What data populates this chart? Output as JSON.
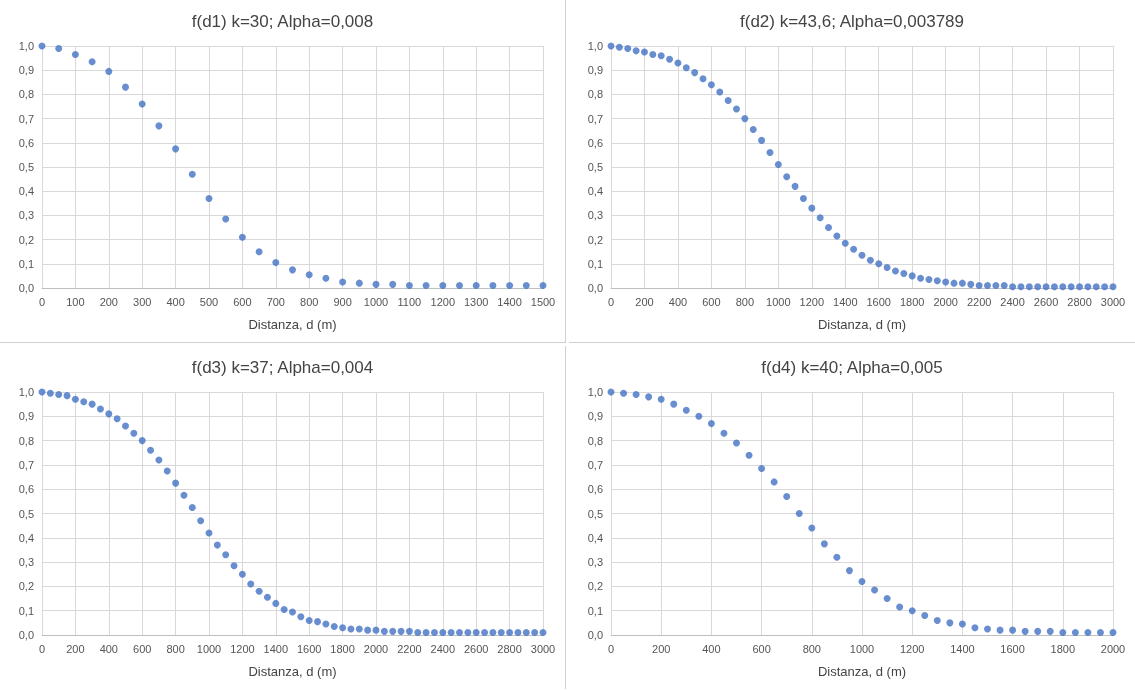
{
  "chart_data": [
    {
      "type": "scatter",
      "title": "f(d1) k=30; Alpha=0,008",
      "xlabel": "Distanza, d (m)",
      "marker": "circle",
      "grid": true,
      "xlim": [
        0,
        1500
      ],
      "xticks": [
        0,
        100,
        200,
        300,
        400,
        500,
        600,
        700,
        800,
        900,
        1000,
        1100,
        1200,
        1300,
        1400,
        1500
      ],
      "ylim": [
        0,
        1
      ],
      "yticks": [
        {
          "value": 0,
          "label": "0,0"
        },
        {
          "value": 0.1,
          "label": "0,1"
        },
        {
          "value": 0.2,
          "label": "0,2"
        },
        {
          "value": 0.3,
          "label": "0,3"
        },
        {
          "value": 0.4,
          "label": "0,4"
        },
        {
          "value": 0.5,
          "label": "0,5"
        },
        {
          "value": 0.6,
          "label": "0,6"
        },
        {
          "value": 0.7,
          "label": "0,7"
        },
        {
          "value": 0.8,
          "label": "0,8"
        },
        {
          "value": 0.9,
          "label": "0,9"
        },
        {
          "value": 1,
          "label": "1,0"
        }
      ],
      "x": [
        0,
        50,
        100,
        150,
        200,
        250,
        300,
        350,
        400,
        450,
        500,
        550,
        600,
        650,
        700,
        750,
        800,
        850,
        900,
        950,
        1000,
        1050,
        1100,
        1150,
        1200,
        1250,
        1300,
        1350,
        1400,
        1450,
        1500
      ],
      "series": [
        {
          "color": "#4472c4",
          "values": [
            1.0,
            0.99,
            0.965,
            0.935,
            0.895,
            0.83,
            0.76,
            0.67,
            0.575,
            0.47,
            0.37,
            0.285,
            0.21,
            0.15,
            0.105,
            0.075,
            0.055,
            0.04,
            0.025,
            0.02,
            0.015,
            0.015,
            0.01,
            0.01,
            0.01,
            0.01,
            0.01,
            0.01,
            0.01,
            0.01,
            0.01
          ]
        }
      ]
    },
    {
      "type": "scatter",
      "title": "f(d2) k=43,6; Alpha=0,003789",
      "xlabel": "Distanza, d (m)",
      "marker": "circle",
      "grid": true,
      "xlim": [
        0,
        3000
      ],
      "xticks": [
        0,
        200,
        400,
        600,
        800,
        1000,
        1200,
        1400,
        1600,
        1800,
        2000,
        2200,
        2400,
        2600,
        2800,
        3000
      ],
      "ylim": [
        0,
        1
      ],
      "yticks": [
        {
          "value": 0,
          "label": "0,0"
        },
        {
          "value": 0.1,
          "label": "0,1"
        },
        {
          "value": 0.2,
          "label": "0,2"
        },
        {
          "value": 0.3,
          "label": "0,3"
        },
        {
          "value": 0.4,
          "label": "0,4"
        },
        {
          "value": 0.5,
          "label": "0,5"
        },
        {
          "value": 0.6,
          "label": "0,6"
        },
        {
          "value": 0.7,
          "label": "0,7"
        },
        {
          "value": 0.8,
          "label": "0,8"
        },
        {
          "value": 0.9,
          "label": "0,9"
        },
        {
          "value": 1,
          "label": "1,0"
        }
      ],
      "x": [
        0,
        50,
        100,
        150,
        200,
        250,
        300,
        350,
        400,
        450,
        500,
        550,
        600,
        650,
        700,
        750,
        800,
        850,
        900,
        950,
        1000,
        1050,
        1100,
        1150,
        1200,
        1250,
        1300,
        1350,
        1400,
        1450,
        1500,
        1550,
        1600,
        1650,
        1700,
        1750,
        1800,
        1850,
        1900,
        1950,
        2000,
        2050,
        2100,
        2150,
        2200,
        2250,
        2300,
        2350,
        2400,
        2450,
        2500,
        2550,
        2600,
        2650,
        2700,
        2750,
        2800,
        2850,
        2900,
        2950,
        3000
      ],
      "series": [
        {
          "color": "#4472c4",
          "values": [
            1.0,
            0.995,
            0.99,
            0.98,
            0.975,
            0.965,
            0.96,
            0.945,
            0.93,
            0.91,
            0.89,
            0.865,
            0.84,
            0.81,
            0.775,
            0.74,
            0.7,
            0.655,
            0.61,
            0.56,
            0.51,
            0.46,
            0.42,
            0.37,
            0.33,
            0.29,
            0.25,
            0.215,
            0.185,
            0.16,
            0.135,
            0.115,
            0.1,
            0.085,
            0.07,
            0.06,
            0.05,
            0.04,
            0.035,
            0.03,
            0.025,
            0.02,
            0.02,
            0.015,
            0.01,
            0.01,
            0.01,
            0.01,
            0.005,
            0.005,
            0.005,
            0.005,
            0.005,
            0.005,
            0.005,
            0.005,
            0.005,
            0.005,
            0.005,
            0.005,
            0.005
          ]
        }
      ]
    },
    {
      "type": "scatter",
      "title": "f(d3) k=37; Alpha=0,004",
      "xlabel": "Distanza, d (m)",
      "marker": "circle",
      "grid": true,
      "xlim": [
        0,
        3000
      ],
      "xticks": [
        0,
        200,
        400,
        600,
        800,
        1000,
        1200,
        1400,
        1600,
        1800,
        2000,
        2200,
        2400,
        2600,
        2800,
        3000
      ],
      "ylim": [
        0,
        1
      ],
      "yticks": [
        {
          "value": 0,
          "label": "0,0"
        },
        {
          "value": 0.1,
          "label": "0,1"
        },
        {
          "value": 0.2,
          "label": "0,2"
        },
        {
          "value": 0.3,
          "label": "0,3"
        },
        {
          "value": 0.4,
          "label": "0,4"
        },
        {
          "value": 0.5,
          "label": "0,5"
        },
        {
          "value": 0.6,
          "label": "0,6"
        },
        {
          "value": 0.7,
          "label": "0,7"
        },
        {
          "value": 0.8,
          "label": "0,8"
        },
        {
          "value": 0.9,
          "label": "0,9"
        },
        {
          "value": 1,
          "label": "1,0"
        }
      ],
      "x": [
        0,
        50,
        100,
        150,
        200,
        250,
        300,
        350,
        400,
        450,
        500,
        550,
        600,
        650,
        700,
        750,
        800,
        850,
        900,
        950,
        1000,
        1050,
        1100,
        1150,
        1200,
        1250,
        1300,
        1350,
        1400,
        1450,
        1500,
        1550,
        1600,
        1650,
        1700,
        1750,
        1800,
        1850,
        1900,
        1950,
        2000,
        2050,
        2100,
        2150,
        2200,
        2250,
        2300,
        2350,
        2400,
        2450,
        2500,
        2550,
        2600,
        2650,
        2700,
        2750,
        2800,
        2850,
        2900,
        2950,
        3000
      ],
      "series": [
        {
          "color": "#4472c4",
          "values": [
            1.0,
            0.995,
            0.99,
            0.985,
            0.97,
            0.96,
            0.95,
            0.93,
            0.91,
            0.89,
            0.86,
            0.83,
            0.8,
            0.76,
            0.72,
            0.675,
            0.625,
            0.575,
            0.525,
            0.47,
            0.42,
            0.37,
            0.33,
            0.285,
            0.25,
            0.21,
            0.18,
            0.155,
            0.13,
            0.105,
            0.095,
            0.075,
            0.06,
            0.055,
            0.045,
            0.035,
            0.03,
            0.025,
            0.025,
            0.02,
            0.02,
            0.015,
            0.015,
            0.015,
            0.015,
            0.01,
            0.01,
            0.01,
            0.01,
            0.01,
            0.01,
            0.01,
            0.01,
            0.01,
            0.01,
            0.01,
            0.01,
            0.01,
            0.01,
            0.01,
            0.01
          ]
        }
      ]
    },
    {
      "type": "scatter",
      "title": "f(d4) k=40; Alpha=0,005",
      "xlabel": "Distanza, d (m)",
      "marker": "circle",
      "grid": true,
      "xlim": [
        0,
        2000
      ],
      "xticks": [
        0,
        200,
        400,
        600,
        800,
        1000,
        1200,
        1400,
        1600,
        1800,
        2000
      ],
      "ylim": [
        0,
        1
      ],
      "yticks": [
        {
          "value": 0,
          "label": "0,0"
        },
        {
          "value": 0.1,
          "label": "0,1"
        },
        {
          "value": 0.2,
          "label": "0,2"
        },
        {
          "value": 0.3,
          "label": "0,3"
        },
        {
          "value": 0.4,
          "label": "0,4"
        },
        {
          "value": 0.5,
          "label": "0,5"
        },
        {
          "value": 0.6,
          "label": "0,6"
        },
        {
          "value": 0.7,
          "label": "0,7"
        },
        {
          "value": 0.8,
          "label": "0,8"
        },
        {
          "value": 0.9,
          "label": "0,9"
        },
        {
          "value": 1,
          "label": "1,0"
        }
      ],
      "x": [
        0,
        50,
        100,
        150,
        200,
        250,
        300,
        350,
        400,
        450,
        500,
        550,
        600,
        650,
        700,
        750,
        800,
        850,
        900,
        950,
        1000,
        1050,
        1100,
        1150,
        1200,
        1250,
        1300,
        1350,
        1400,
        1450,
        1500,
        1550,
        1600,
        1650,
        1700,
        1750,
        1800,
        1850,
        1900,
        1950,
        2000
      ],
      "series": [
        {
          "color": "#4472c4",
          "values": [
            1.0,
            0.995,
            0.99,
            0.98,
            0.97,
            0.95,
            0.925,
            0.9,
            0.87,
            0.83,
            0.79,
            0.74,
            0.685,
            0.63,
            0.57,
            0.5,
            0.44,
            0.375,
            0.32,
            0.265,
            0.22,
            0.185,
            0.15,
            0.115,
            0.1,
            0.08,
            0.06,
            0.05,
            0.045,
            0.03,
            0.025,
            0.02,
            0.02,
            0.015,
            0.015,
            0.015,
            0.01,
            0.01,
            0.01,
            0.01,
            0.01
          ]
        }
      ]
    }
  ]
}
